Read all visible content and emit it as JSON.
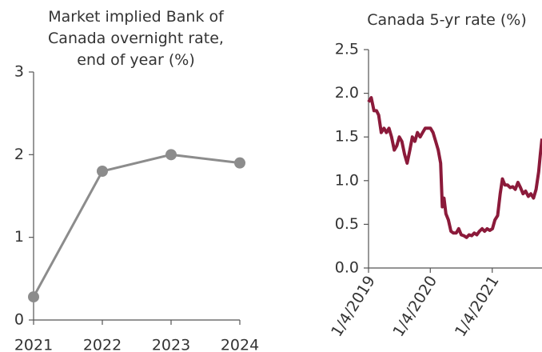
{
  "chart_data": [
    {
      "type": "line",
      "title": "Market implied Bank of Canada overnight rate, end of year (%)",
      "categories": [
        "2021",
        "2022",
        "2023",
        "2024"
      ],
      "values": [
        0.28,
        1.8,
        2.0,
        1.9
      ],
      "color": "#8c8c8c",
      "markers": true,
      "ylim": [
        0,
        3
      ],
      "yticks": [
        0,
        1,
        2,
        3
      ]
    },
    {
      "type": "timeline",
      "title": "Canada 5-yr rate (%)",
      "x": [
        "2019-01-04",
        "2019-01-20",
        "2019-02-05",
        "2019-02-20",
        "2019-03-05",
        "2019-03-20",
        "2019-04-05",
        "2019-04-20",
        "2019-05-05",
        "2019-05-20",
        "2019-06-05",
        "2019-06-20",
        "2019-07-05",
        "2019-07-20",
        "2019-08-05",
        "2019-08-20",
        "2019-09-05",
        "2019-09-20",
        "2019-10-05",
        "2019-10-20",
        "2019-11-05",
        "2019-11-20",
        "2019-12-05",
        "2019-12-20",
        "2020-01-05",
        "2020-01-20",
        "2020-02-05",
        "2020-02-20",
        "2020-03-05",
        "2020-03-15",
        "2020-03-25",
        "2020-04-05",
        "2020-04-20",
        "2020-05-05",
        "2020-05-20",
        "2020-06-05",
        "2020-06-20",
        "2020-07-05",
        "2020-07-20",
        "2020-08-05",
        "2020-08-20",
        "2020-09-05",
        "2020-09-20",
        "2020-10-05",
        "2020-10-20",
        "2020-11-05",
        "2020-11-20",
        "2020-12-05",
        "2020-12-20",
        "2021-01-05",
        "2021-01-20",
        "2021-02-05",
        "2021-02-20",
        "2021-03-05",
        "2021-03-20",
        "2021-04-05",
        "2021-04-20",
        "2021-05-05",
        "2021-05-20",
        "2021-06-05",
        "2021-06-20",
        "2021-07-05",
        "2021-07-20",
        "2021-08-05",
        "2021-08-20",
        "2021-09-05",
        "2021-09-20",
        "2021-10-05",
        "2021-10-15",
        "2021-10-25"
      ],
      "values": [
        1.9,
        1.95,
        1.8,
        1.8,
        1.75,
        1.55,
        1.6,
        1.55,
        1.6,
        1.5,
        1.35,
        1.4,
        1.5,
        1.45,
        1.3,
        1.2,
        1.35,
        1.5,
        1.45,
        1.55,
        1.5,
        1.55,
        1.6,
        1.6,
        1.6,
        1.55,
        1.45,
        1.35,
        1.2,
        0.7,
        0.8,
        0.62,
        0.55,
        0.42,
        0.4,
        0.4,
        0.45,
        0.38,
        0.37,
        0.35,
        0.38,
        0.37,
        0.4,
        0.38,
        0.42,
        0.45,
        0.42,
        0.45,
        0.43,
        0.45,
        0.55,
        0.6,
        0.85,
        1.02,
        0.95,
        0.95,
        0.92,
        0.93,
        0.9,
        0.98,
        0.92,
        0.85,
        0.88,
        0.82,
        0.85,
        0.8,
        0.9,
        1.1,
        1.3,
        1.48
      ],
      "color": "#8b1a3a",
      "xlim": [
        "2019-01-04",
        "2021-10-25"
      ],
      "xticks": [
        {
          "value": "2019-01-04",
          "label": "1/4/2019"
        },
        {
          "value": "2020-01-04",
          "label": "1/4/2020"
        },
        {
          "value": "2021-01-04",
          "label": "1/4/2021"
        }
      ],
      "ylim": [
        0,
        2.5
      ],
      "yticks": [
        {
          "value": 0,
          "label": "0.0"
        },
        0.5,
        {
          "value": 1,
          "label": "1.0"
        },
        1.5,
        {
          "value": 2,
          "label": "2.0"
        },
        2.5
      ]
    }
  ]
}
